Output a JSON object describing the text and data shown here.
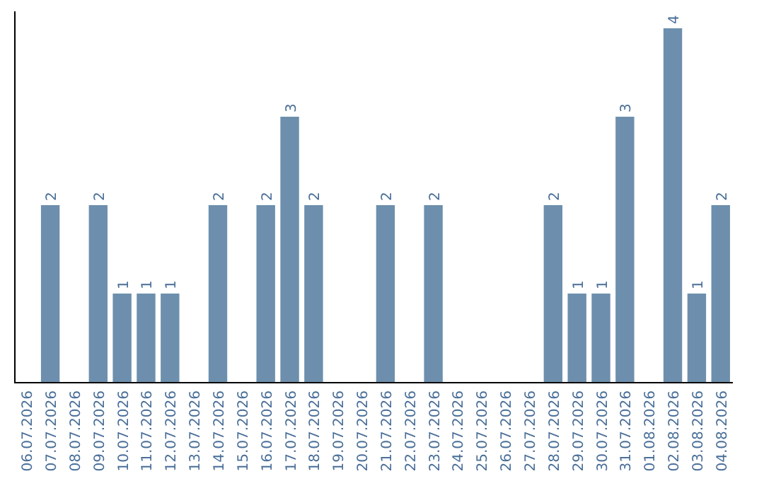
{
  "chart_data": {
    "type": "bar",
    "categories": [
      "06.07.2026",
      "07.07.2026",
      "08.07.2026",
      "09.07.2026",
      "10.07.2026",
      "11.07.2026",
      "12.07.2026",
      "13.07.2026",
      "14.07.2026",
      "15.07.2026",
      "16.07.2026",
      "17.07.2026",
      "18.07.2026",
      "19.07.2026",
      "20.07.2026",
      "21.07.2026",
      "22.07.2026",
      "23.07.2026",
      "24.07.2026",
      "25.07.2026",
      "26.07.2026",
      "27.07.2026",
      "28.07.2026",
      "29.07.2026",
      "30.07.2026",
      "31.07.2026",
      "01.08.2026",
      "02.08.2026",
      "03.08.2026",
      "04.08.2026"
    ],
    "values": [
      0,
      2,
      0,
      2,
      1,
      1,
      1,
      0,
      2,
      0,
      2,
      3,
      2,
      0,
      0,
      2,
      0,
      2,
      0,
      0,
      0,
      0,
      2,
      1,
      1,
      3,
      0,
      4,
      1,
      2
    ],
    "value_labels": [
      null,
      "2",
      null,
      "2",
      "1",
      "1",
      "1",
      null,
      "2",
      null,
      "2",
      "3",
      "2",
      null,
      null,
      "2",
      null,
      "2",
      null,
      null,
      null,
      null,
      "2",
      "1",
      "1",
      "3",
      null,
      "4",
      "1",
      "2"
    ],
    "color": "#6d8fad",
    "tick_labels": "x"
  }
}
